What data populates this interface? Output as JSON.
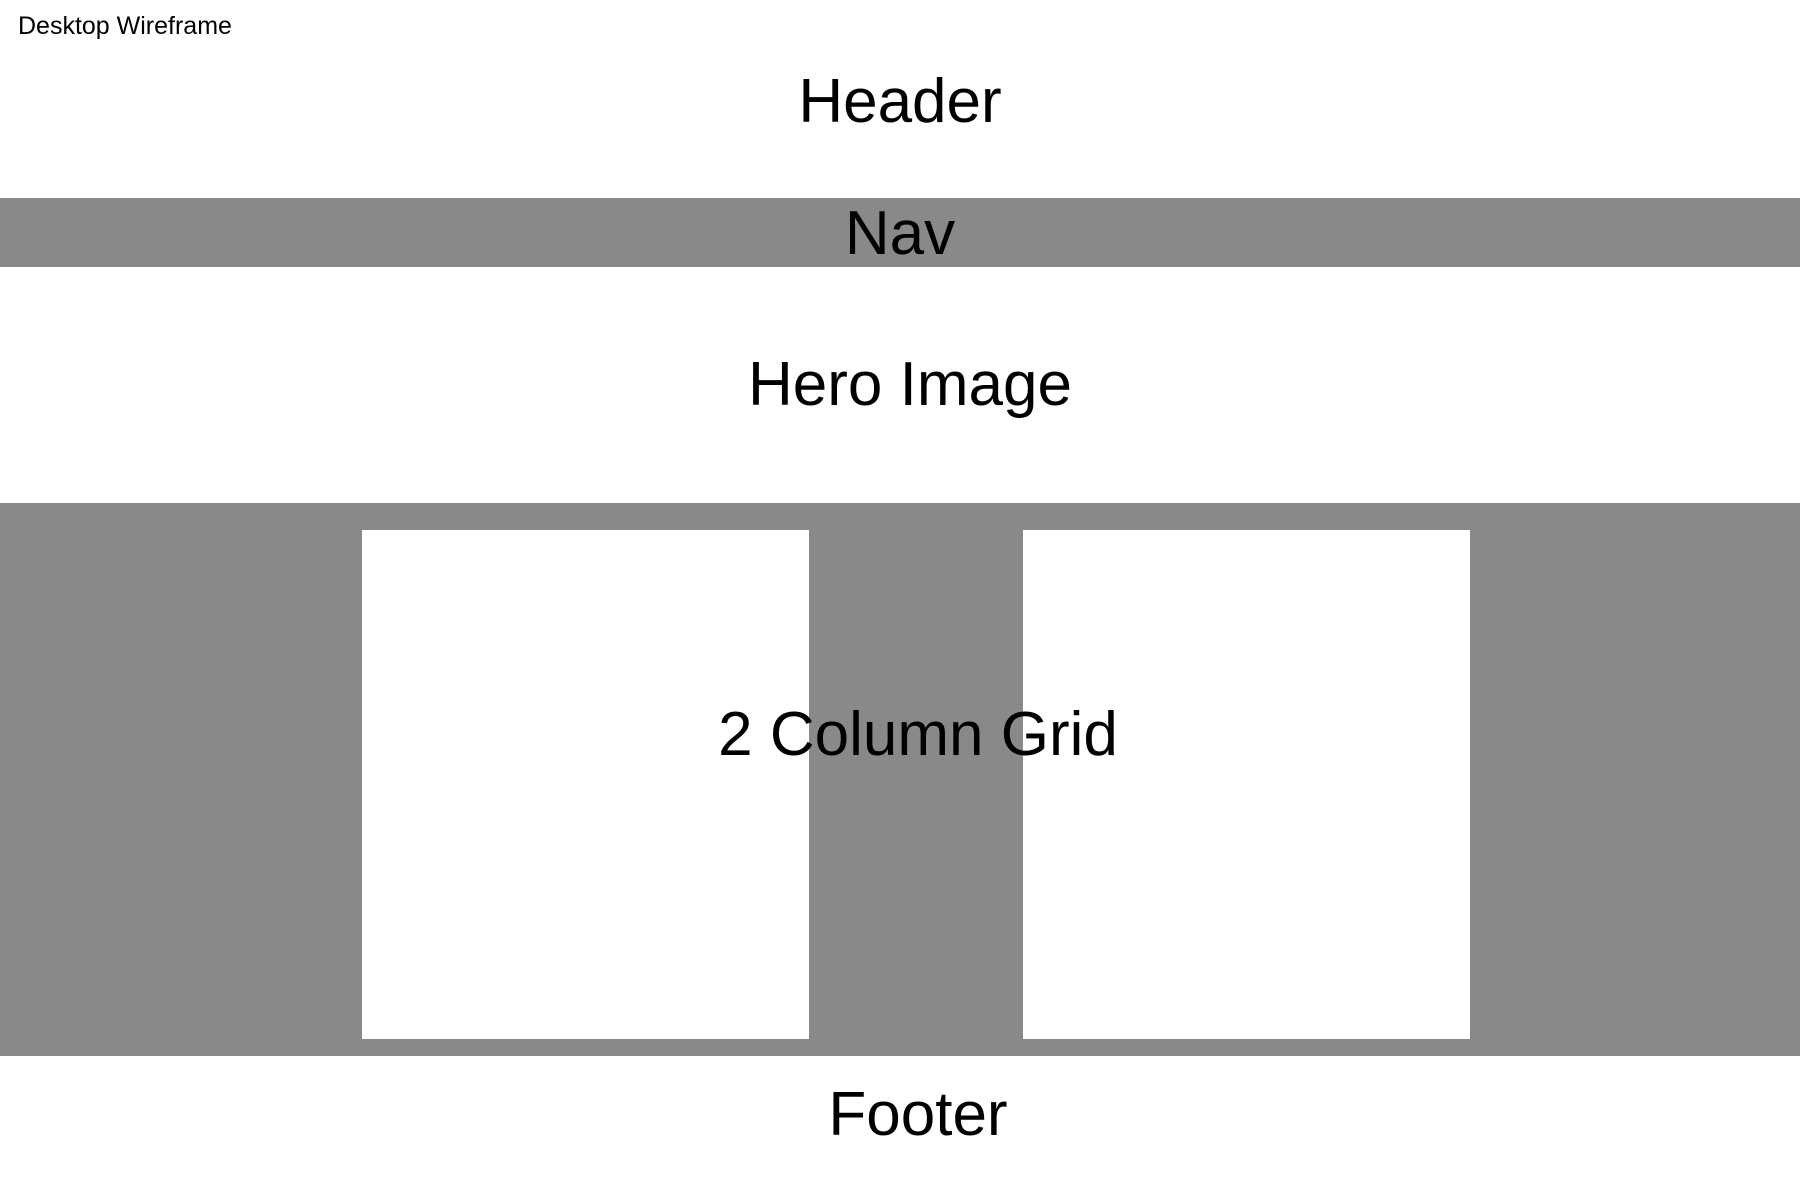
{
  "caption": "Desktop Wireframe",
  "sections": {
    "header": "Header",
    "nav": "Nav",
    "hero": "Hero Image",
    "grid": "2 Column Grid",
    "footer": "Footer"
  },
  "colors": {
    "block_fill": "#898989",
    "background": "#ffffff",
    "text": "#000000"
  }
}
